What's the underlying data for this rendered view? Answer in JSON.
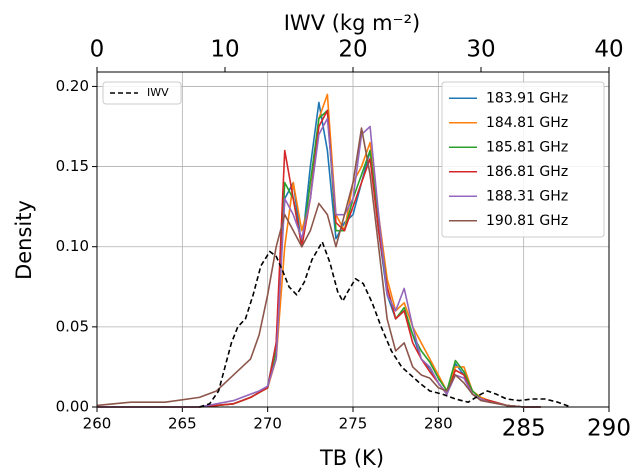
{
  "chart_data": {
    "type": "line",
    "xlabel": "TB (K)",
    "ylabel": "Density",
    "x2label": "IWV (kg m⁻²)",
    "xlim": [
      260,
      290
    ],
    "xticks": [
      260,
      265,
      270,
      275,
      280,
      285,
      290
    ],
    "x2lim": [
      0,
      40
    ],
    "x2ticks": [
      0,
      10,
      20,
      30,
      40
    ],
    "ylim": [
      0,
      0.209
    ],
    "yticks": [
      {
        "value": 0,
        "label": "0.00"
      },
      {
        "value": 0.05,
        "label": "0.05"
      },
      {
        "value": 0.1,
        "label": "0.10"
      },
      {
        "value": 0.15,
        "label": "0.15"
      },
      {
        "value": 0.2,
        "label": "0.20"
      }
    ],
    "grid": true,
    "legend": "upper right",
    "x2_legend": "upper left",
    "x": [
      260,
      262,
      264,
      266,
      267,
      268,
      268.5,
      269,
      269.5,
      270,
      270.5,
      271,
      271.5,
      272,
      272.5,
      273,
      273.5,
      274,
      274.5,
      275,
      275.5,
      276,
      276.5,
      277,
      277.5,
      278,
      278.5,
      279,
      279.5,
      280,
      280.5,
      281,
      281.5,
      282,
      282.5,
      283,
      284,
      285,
      286
    ],
    "series": [
      {
        "name": "183.91 GHz",
        "color": "#1f77b4",
        "values": [
          0,
          0,
          0,
          0,
          0.001,
          0.002,
          0.004,
          0.006,
          0.009,
          0.013,
          0.04,
          0.13,
          0.14,
          0.1,
          0.15,
          0.19,
          0.16,
          0.105,
          0.115,
          0.12,
          0.14,
          0.16,
          0.11,
          0.07,
          0.055,
          0.06,
          0.045,
          0.03,
          0.024,
          0.015,
          0.008,
          0.027,
          0.02,
          0.008,
          0.005,
          0.004,
          0.001,
          0,
          0
        ]
      },
      {
        "name": "184.81 GHz",
        "color": "#ff7f0e",
        "values": [
          0,
          0,
          0,
          0,
          0.001,
          0.002,
          0.004,
          0.006,
          0.009,
          0.012,
          0.03,
          0.1,
          0.14,
          0.11,
          0.13,
          0.18,
          0.195,
          0.12,
          0.11,
          0.14,
          0.15,
          0.165,
          0.12,
          0.08,
          0.06,
          0.065,
          0.05,
          0.04,
          0.03,
          0.02,
          0.01,
          0.025,
          0.025,
          0.01,
          0.006,
          0.004,
          0.001,
          0,
          0
        ]
      },
      {
        "name": "185.81 GHz",
        "color": "#2ca02c",
        "values": [
          0,
          0,
          0,
          0,
          0.001,
          0.002,
          0.004,
          0.006,
          0.009,
          0.012,
          0.035,
          0.14,
          0.13,
          0.1,
          0.14,
          0.18,
          0.185,
          0.11,
          0.11,
          0.13,
          0.145,
          0.16,
          0.115,
          0.075,
          0.055,
          0.062,
          0.045,
          0.035,
          0.028,
          0.018,
          0.01,
          0.029,
          0.022,
          0.01,
          0.005,
          0.004,
          0.001,
          0,
          0
        ]
      },
      {
        "name": "186.81 GHz",
        "color": "#d62728",
        "values": [
          0,
          0,
          0,
          0,
          0.001,
          0.002,
          0.004,
          0.006,
          0.009,
          0.012,
          0.04,
          0.16,
          0.13,
          0.1,
          0.13,
          0.175,
          0.185,
          0.115,
          0.11,
          0.125,
          0.14,
          0.155,
          0.11,
          0.075,
          0.055,
          0.06,
          0.04,
          0.03,
          0.022,
          0.015,
          0.008,
          0.023,
          0.02,
          0.008,
          0.005,
          0.004,
          0.001,
          0,
          0
        ]
      },
      {
        "name": "188.31 GHz",
        "color": "#9467bd",
        "values": [
          0,
          0,
          0,
          0,
          0.002,
          0.004,
          0.006,
          0.008,
          0.01,
          0.013,
          0.03,
          0.13,
          0.12,
          0.105,
          0.13,
          0.17,
          0.18,
          0.12,
          0.12,
          0.13,
          0.17,
          0.175,
          0.12,
          0.07,
          0.06,
          0.074,
          0.05,
          0.03,
          0.025,
          0.015,
          0.008,
          0.02,
          0.018,
          0.008,
          0.005,
          0.003,
          0.001,
          0,
          0
        ]
      },
      {
        "name": "190.81 GHz",
        "color": "#8c564b",
        "values": [
          0.001,
          0.003,
          0.003,
          0.006,
          0.01,
          0.02,
          0.025,
          0.03,
          0.045,
          0.07,
          0.1,
          0.12,
          0.11,
          0.1,
          0.11,
          0.127,
          0.12,
          0.1,
          0.12,
          0.14,
          0.174,
          0.145,
          0.1,
          0.055,
          0.035,
          0.04,
          0.025,
          0.02,
          0.018,
          0.012,
          0.01,
          0.02,
          0.015,
          0.008,
          0.004,
          0.003,
          0.001,
          0,
          0
        ]
      },
      {
        "name": "IWV",
        "color": "#000000",
        "dash": true,
        "axis": "x2",
        "x": [
          8,
          8.8,
          9.5,
          10,
          10.5,
          11,
          11.6,
          12.2,
          12.8,
          13.5,
          14,
          14.5,
          15,
          15.6,
          16.2,
          16.8,
          17.6,
          18.2,
          18.8,
          19.2,
          19.6,
          20.2,
          20.8,
          21.5,
          22.2,
          23,
          23.8,
          24.5,
          25.2,
          26,
          27,
          28,
          29,
          30,
          30.5,
          31.2,
          32,
          33,
          34,
          35,
          36,
          37
        ],
        "values": [
          0,
          0.002,
          0.01,
          0.025,
          0.04,
          0.05,
          0.055,
          0.07,
          0.088,
          0.097,
          0.094,
          0.085,
          0.075,
          0.07,
          0.078,
          0.092,
          0.103,
          0.09,
          0.072,
          0.066,
          0.072,
          0.08,
          0.077,
          0.065,
          0.05,
          0.035,
          0.025,
          0.02,
          0.015,
          0.01,
          0.008,
          0.005,
          0.003,
          0.008,
          0.01,
          0.008,
          0.005,
          0.004,
          0.005,
          0.005,
          0.003,
          0
        ]
      }
    ]
  }
}
